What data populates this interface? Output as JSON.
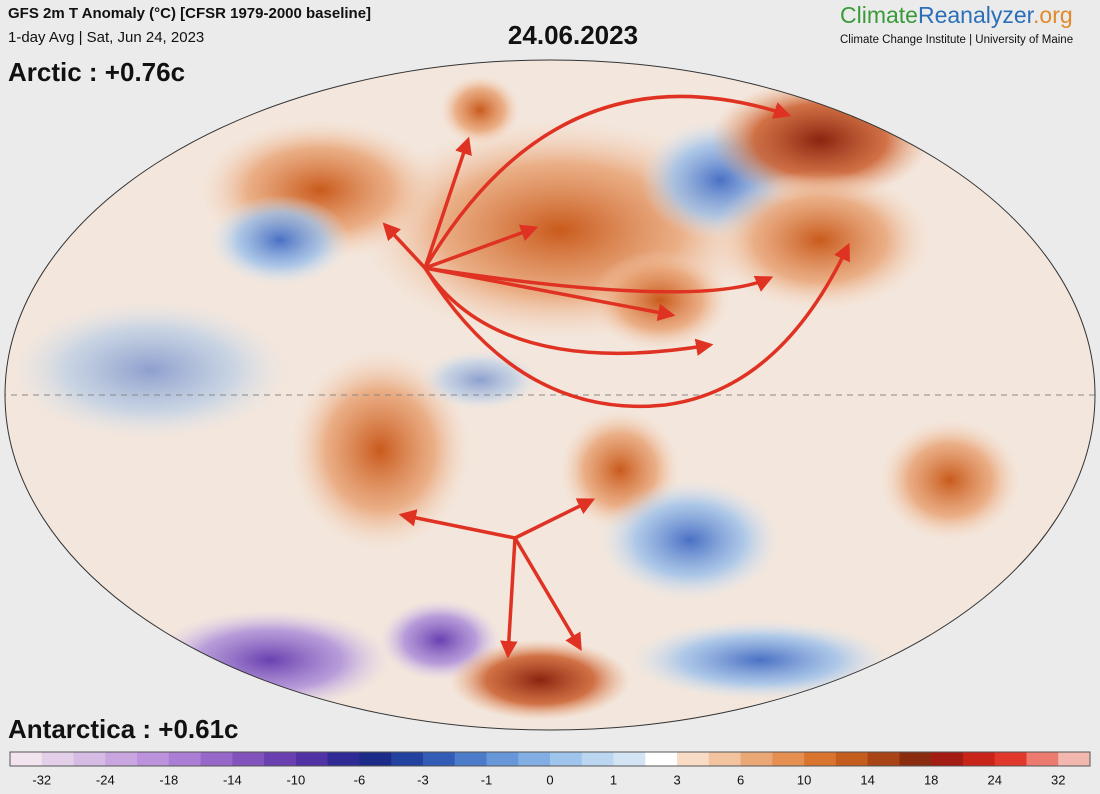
{
  "header": {
    "title": "GFS 2m T Anomaly (°C) [CFSR 1979-2000 baseline]",
    "subtitle": "1-day Avg | Sat, Jun 24, 2023",
    "date": "24.06.2023",
    "brand": [
      "Climate",
      "Reanalyzer",
      ".org"
    ],
    "affiliation": "Climate Change Institute | University of Maine"
  },
  "annotations": {
    "arctic": "Arctic :  +0.76c",
    "antarctica": "Antarctica :  +0.61c"
  },
  "colorbar": {
    "ticks": [
      -32,
      -24,
      -18,
      -14,
      -10,
      -6,
      -3,
      -1,
      0,
      1,
      3,
      6,
      10,
      14,
      18,
      24,
      32
    ],
    "colors": [
      "#f2e4ee",
      "#e4cfe9",
      "#d6bbe5",
      "#c9a6e0",
      "#bb92db",
      "#ab7dd4",
      "#9867ca",
      "#8252bd",
      "#6a40b0",
      "#5132a4",
      "#2f2a96",
      "#1c2a88",
      "#23419f",
      "#335cb6",
      "#4c7bca",
      "#6796d9",
      "#83aee4",
      "#9fc5ec",
      "#bad6f1",
      "#d3e5f5",
      "#ffffff",
      "#f8dcc6",
      "#f2c39e",
      "#eba877",
      "#e58f51",
      "#d9742e",
      "#c45c1e",
      "#a84416",
      "#8a2c10",
      "#a31c14",
      "#c8241a",
      "#e0392c",
      "#ec7a6e",
      "#f2b8b0"
    ]
  }
}
